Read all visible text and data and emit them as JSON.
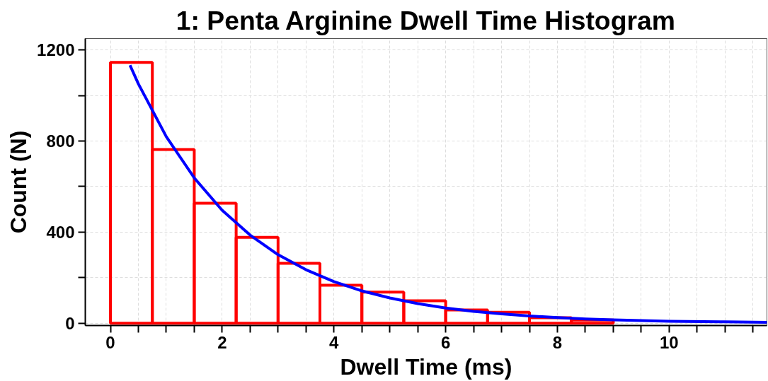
{
  "chart_data": {
    "type": "histogram",
    "title": "1: Penta Arginine Dwell Time Histogram",
    "xlabel": "Dwell Time (ms)",
    "ylabel": "Count (N)",
    "bins": [
      0,
      0.75,
      1.5,
      2.25,
      3,
      3.75,
      4.5,
      5.25,
      6,
      6.75,
      7.5,
      8.25,
      9
    ],
    "series": [
      {
        "color": "#ff0000",
        "values": [
          1145,
          763,
          527,
          377,
          263,
          167,
          137,
          99,
          58,
          48,
          24,
          14
        ]
      },
      {
        "type": "line",
        "color": "#0000ff",
        "x": [
          0.35,
          0.5,
          1,
          1.5,
          2,
          2.5,
          3,
          3.5,
          4,
          4.5,
          5,
          5.5,
          6,
          6.5,
          7,
          7.5,
          8,
          8.5,
          9,
          10,
          11,
          11.75
        ],
        "values": [
          1133,
          1051,
          819,
          638,
          496,
          387,
          301,
          235,
          183,
          142,
          111,
          86,
          67,
          52,
          41,
          32,
          25,
          19,
          15,
          9,
          6,
          4
        ]
      }
    ],
    "xlim": [
      -0.45,
      11.75
    ],
    "ylim": [
      -10,
      1250
    ],
    "xticks": [
      0,
      {
        "value": 0.5,
        "label": null
      },
      {
        "value": 1,
        "label": null
      },
      {
        "value": 1.5,
        "label": null
      },
      2,
      {
        "value": 2.5,
        "label": null
      },
      {
        "value": 3,
        "label": null
      },
      {
        "value": 3.5,
        "label": null
      },
      4,
      {
        "value": 4.5,
        "label": null
      },
      {
        "value": 5,
        "label": null
      },
      {
        "value": 5.5,
        "label": null
      },
      6,
      {
        "value": 6.5,
        "label": null
      },
      {
        "value": 7,
        "label": null
      },
      {
        "value": 7.5,
        "label": null
      },
      8,
      {
        "value": 8.5,
        "label": null
      },
      {
        "value": 9,
        "label": null
      },
      {
        "value": 9.5,
        "label": null
      },
      10,
      {
        "value": 10.5,
        "label": null
      },
      {
        "value": 11,
        "label": null
      },
      {
        "value": 11.5,
        "label": null
      }
    ],
    "yticks": [
      0,
      {
        "value": 200,
        "label": null
      },
      400,
      {
        "value": 600,
        "label": null
      },
      800,
      {
        "value": 1000,
        "label": null
      },
      1200
    ],
    "grid": true
  }
}
